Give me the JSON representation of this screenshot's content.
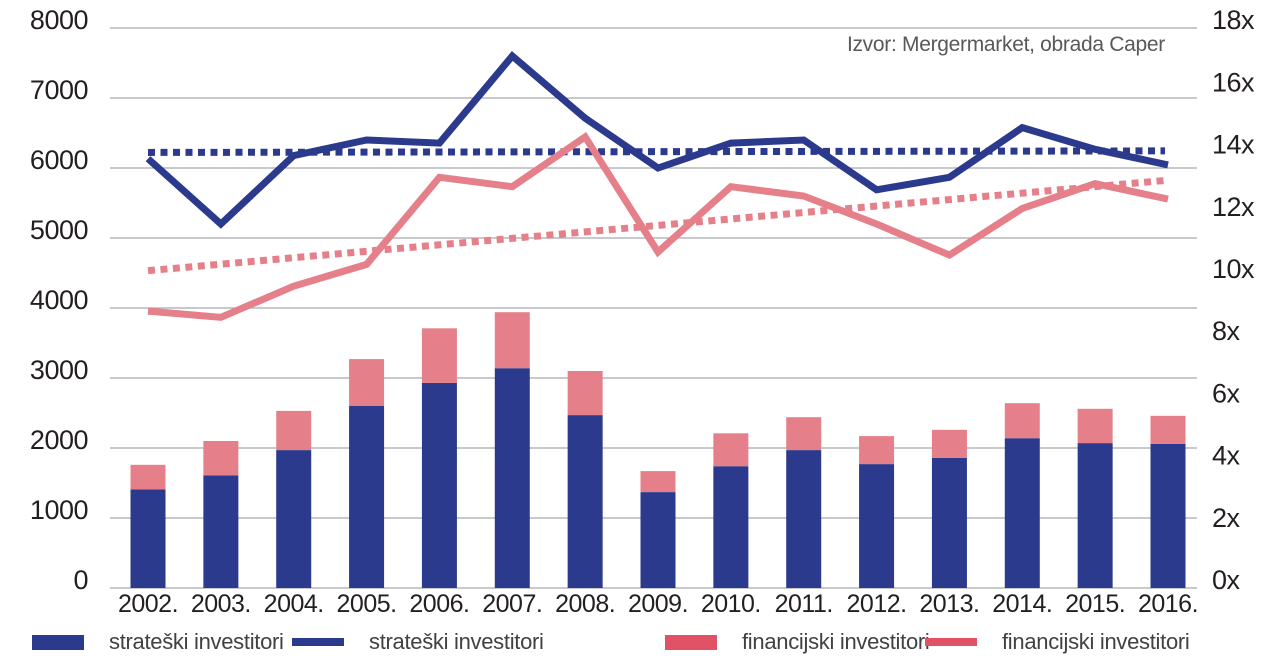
{
  "source_note": "Izvor: Mergermarket, obrada Caper",
  "colors": {
    "navy": "#2b3a8c",
    "pink": "#e5808b",
    "legend_pink": "#e25266",
    "grid": "#a8a9ad",
    "axis_text": "#231f20",
    "source_text": "#58595b",
    "legend_text": "#414042",
    "background": "#ffffff"
  },
  "chart_data": {
    "type": "combo: stacked bar + line",
    "categories": [
      "2002.",
      "2003.",
      "2004.",
      "2005.",
      "2006.",
      "2007.",
      "2008.",
      "2009.",
      "2010.",
      "2011.",
      "2012.",
      "2013.",
      "2014.",
      "2015.",
      "2016."
    ],
    "left_axis": {
      "ticks": [
        "8000",
        "7000",
        "6000",
        "5000",
        "4000",
        "3000",
        "2000",
        "1000",
        "0"
      ],
      "min": 0,
      "max": 8000,
      "grid": true
    },
    "right_axis": {
      "ticks": [
        "18x",
        "16x",
        "14x",
        "12x",
        "10x",
        "8x",
        "6x",
        "4x",
        "2x",
        "0x"
      ],
      "min": 0,
      "max": 18,
      "grid": false
    },
    "bar_series": [
      {
        "name": "strateški investitori",
        "axis": "left",
        "color_key": "navy",
        "stack_order": "bottom",
        "values": [
          1410,
          1610,
          1970,
          2600,
          2930,
          3140,
          2470,
          1370,
          1740,
          1970,
          1770,
          1860,
          2140,
          2070,
          2060
        ]
      },
      {
        "name": "financijski investitori",
        "axis": "left",
        "color_key": "pink",
        "stack_order": "top",
        "values": [
          350,
          490,
          560,
          670,
          780,
          800,
          630,
          300,
          470,
          470,
          400,
          400,
          500,
          490,
          400
        ]
      }
    ],
    "line_series": [
      {
        "name": "financijski investitori",
        "axis": "right",
        "color_key": "pink",
        "style": "solid",
        "values": [
          8.9,
          8.7,
          9.7,
          10.4,
          13.2,
          12.9,
          14.5,
          10.8,
          12.9,
          12.6,
          11.7,
          10.7,
          12.2,
          13.0,
          12.5
        ]
      },
      {
        "name": "strateški investitori",
        "axis": "right",
        "color_key": "navy",
        "style": "solid",
        "values": [
          13.8,
          11.7,
          13.9,
          14.4,
          14.3,
          17.1,
          15.1,
          13.5,
          14.3,
          14.4,
          12.8,
          13.2,
          14.8,
          14.1,
          13.6
        ]
      }
    ],
    "trend_lines": [
      {
        "name": "financijski investitori trend",
        "axis": "right",
        "color_key": "pink",
        "style": "dotted",
        "start": 10.2,
        "end": 13.1
      },
      {
        "name": "strateški investitori trend",
        "axis": "right",
        "color_key": "navy",
        "style": "dotted",
        "start": 14.0,
        "end": 14.05
      }
    ],
    "legend": [
      {
        "label": "strateški investitori",
        "swatch": "bar",
        "color_key": "navy"
      },
      {
        "label": "strateški investitori",
        "swatch": "line",
        "color_key": "navy"
      },
      {
        "label": "financijski investitori",
        "swatch": "bar",
        "color_key": "legend_pink"
      },
      {
        "label": "financijski investitori",
        "swatch": "line",
        "color_key": "legend_pink"
      }
    ],
    "legend_position": "bottom"
  }
}
